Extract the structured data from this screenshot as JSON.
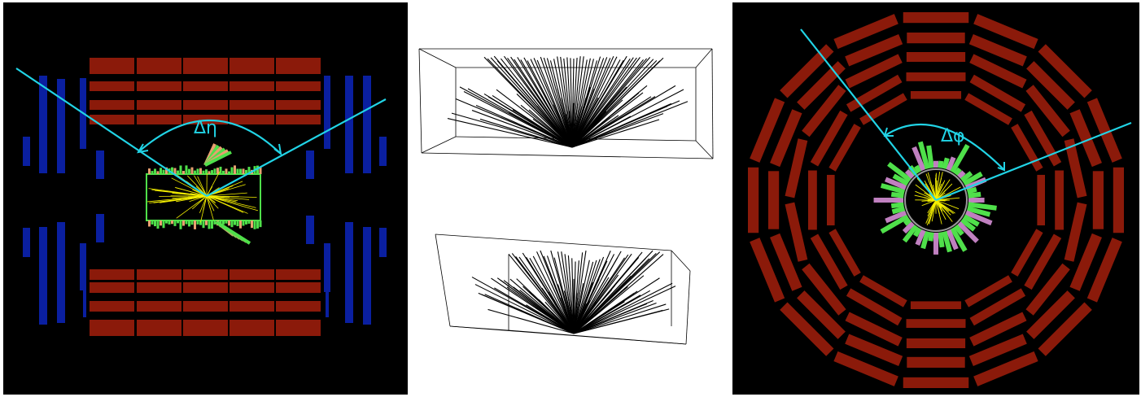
{
  "figure": {
    "left_view": {
      "annotation": "Δη",
      "colors": {
        "background": "#000000",
        "calorimeter_barrel": "#8b1a0a",
        "muon_chambers": "#0a1fa0",
        "jet_axis": "#21d4e6",
        "tracks": "#f5f000",
        "em_energy": "#4fe04a",
        "had_energy": "#e8a070"
      }
    },
    "middle_views": {
      "colors": {
        "background": "#ffffff",
        "tracks": "#000000",
        "box": "#000000"
      }
    },
    "right_view": {
      "annotation": "Δφ",
      "colors": {
        "background": "#000000",
        "calorimeter_rings": "#8b1a0a",
        "jet_axis": "#21d4e6",
        "tracks": "#f5f000",
        "em_energy": "#4fe04a",
        "had_energy": "#c080c0"
      }
    }
  }
}
